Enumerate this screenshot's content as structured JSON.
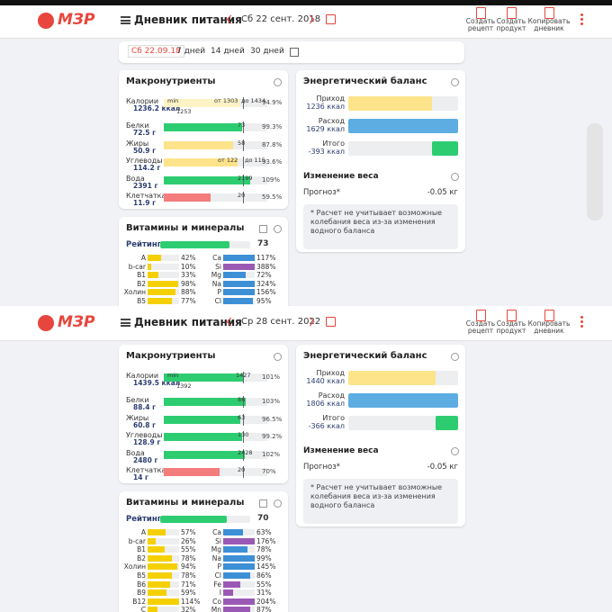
{
  "screens": [
    {
      "header": {
        "brand": "МЗР",
        "title": "Дневник питания",
        "date": "Сб 22 сент. 2018",
        "actions": [
          "Создать рецепт",
          "Создать продукт",
          "Копировать дневник"
        ]
      },
      "periods": [
        "Сб 22.09.18",
        "7 дней",
        "14 дней",
        "30 дней"
      ],
      "macros": {
        "title": "Макронутриенты",
        "rows": [
          {
            "name": "Калории",
            "amount": "1236.2 ккал",
            "pct": 94.9,
            "pct_label": "94.9%",
            "color": "#fdf3c4",
            "marks": [
              "min",
              "от 1303",
              "до 1434"
            ],
            "note": "1253"
          },
          {
            "name": "Белки",
            "amount": "72.5 г",
            "pct": 99.3,
            "pct_label": "99.3%",
            "color": "#2ecc71",
            "marks": [
              "73"
            ]
          },
          {
            "name": "Жиры",
            "amount": "50.9 г",
            "pct": 87.8,
            "pct_label": "87.8%",
            "color": "#fde38a",
            "marks": [
              "58"
            ]
          },
          {
            "name": "Углеводы",
            "amount": "114.2 г",
            "pct": 93.6,
            "pct_label": "93.6%",
            "color": "#fde38a",
            "marks": [
              "от 122",
              "до 115"
            ]
          },
          {
            "name": "Вода",
            "amount": "2391 г",
            "pct": 109,
            "pct_label": "109%",
            "color": "#2ecc71",
            "marks": [
              "2199"
            ]
          },
          {
            "name": "Клетчатка",
            "amount": "11.9 г",
            "pct": 59.5,
            "pct_label": "59.5%",
            "color": "#f47c7c",
            "marks": [
              "20"
            ]
          }
        ]
      },
      "energy": {
        "title": "Энергетический баланс",
        "rows": [
          {
            "name": "Приход",
            "value": 1236,
            "value_label": "1236 ккал",
            "color": "#fde38a"
          },
          {
            "name": "Расход",
            "value": 1629,
            "value_label": "1629 ккал",
            "color": "#5dade2"
          },
          {
            "name": "Итого",
            "value": -393,
            "value_label": "-393 ккал",
            "color": "#2ecc71"
          }
        ],
        "weight_title": "Изменение веса",
        "forecast": "Прогноз*",
        "forecast_value": "-0.05 кг",
        "note": "* Расчет не учитывает возможные колебания веса из-за изменения водного баланса"
      },
      "vitamins": {
        "title": "Витамины и минералы",
        "rating_label": "Рейтинг",
        "rating": 73,
        "left": [
          {
            "name": "A",
            "value": 42,
            "value_label": "42%",
            "color": "#f5d000"
          },
          {
            "name": "b-car",
            "value": 10,
            "value_label": "10%",
            "color": "#f5d000"
          },
          {
            "name": "B1",
            "value": 33,
            "value_label": "33%",
            "color": "#f5d000"
          },
          {
            "name": "B2",
            "value": 98,
            "value_label": "98%",
            "color": "#f5d000"
          },
          {
            "name": "Холин",
            "value": 88,
            "value_label": "88%",
            "color": "#f5d000"
          },
          {
            "name": "B5",
            "value": 77,
            "value_label": "77%",
            "color": "#f5d000"
          }
        ],
        "right": [
          {
            "name": "Ca",
            "value": 117,
            "value_label": "117%",
            "color": "#3d8fd6"
          },
          {
            "name": "Si",
            "value": 388,
            "value_label": "388%",
            "color": "#9b59b6"
          },
          {
            "name": "Mg",
            "value": 72,
            "value_label": "72%",
            "color": "#3d8fd6"
          },
          {
            "name": "Na",
            "value": 324,
            "value_label": "324%",
            "color": "#3d8fd6"
          },
          {
            "name": "P",
            "value": 156,
            "value_label": "156%",
            "color": "#3d8fd6"
          },
          {
            "name": "Cl",
            "value": 95,
            "value_label": "95%",
            "color": "#3d8fd6"
          }
        ]
      }
    },
    {
      "header": {
        "brand": "МЗР",
        "title": "Дневник питания",
        "date": "Ср 28 сент. 2022",
        "actions": [
          "Создать рецепт",
          "Создать продукт",
          "Копировать дневник"
        ]
      },
      "macros": {
        "title": "Макронутриенты",
        "rows": [
          {
            "name": "Калории",
            "amount": "1439.5 ккал",
            "pct": 101,
            "pct_label": "101%",
            "color": "#2ecc71",
            "marks": [
              "min",
              "1427"
            ],
            "note": "1392"
          },
          {
            "name": "Белки",
            "amount": "88.4 г",
            "pct": 103,
            "pct_label": "103%",
            "color": "#2ecc71",
            "marks": [
              "86"
            ]
          },
          {
            "name": "Жиры",
            "amount": "60.8 г",
            "pct": 96.5,
            "pct_label": "96.5%",
            "color": "#2ecc71",
            "marks": [
              "63"
            ]
          },
          {
            "name": "Углеводы",
            "amount": "128.9 г",
            "pct": 99.2,
            "pct_label": "99.2%",
            "color": "#2ecc71",
            "marks": [
              "130"
            ]
          },
          {
            "name": "Вода",
            "amount": "2480 г",
            "pct": 102,
            "pct_label": "102%",
            "color": "#2ecc71",
            "marks": [
              "2428"
            ]
          },
          {
            "name": "Клетчатка",
            "amount": "14 г",
            "pct": 70,
            "pct_label": "70%",
            "color": "#f47c7c",
            "marks": [
              "20"
            ]
          }
        ]
      },
      "energy": {
        "title": "Энергетический баланс",
        "rows": [
          {
            "name": "Приход",
            "value": 1440,
            "value_label": "1440 ккал",
            "color": "#fde38a"
          },
          {
            "name": "Расход",
            "value": 1806,
            "value_label": "1806 ккал",
            "color": "#5dade2"
          },
          {
            "name": "Итого",
            "value": -366,
            "value_label": "-366 ккал",
            "color": "#2ecc71"
          }
        ],
        "weight_title": "Изменение веса",
        "forecast": "Прогноз*",
        "forecast_value": "-0.05 кг",
        "note": "* Расчет не учитывает возможные колебания веса из-за изменения водного баланса"
      },
      "vitamins": {
        "title": "Витамины и минералы",
        "rating_label": "Рейтинг",
        "rating": 70,
        "left": [
          {
            "name": "A",
            "value": 57,
            "value_label": "57%",
            "color": "#f5d000"
          },
          {
            "name": "b-car",
            "value": 26,
            "value_label": "26%",
            "color": "#f5d000"
          },
          {
            "name": "B1",
            "value": 55,
            "value_label": "55%",
            "color": "#f5d000"
          },
          {
            "name": "B2",
            "value": 78,
            "value_label": "78%",
            "color": "#f5d000"
          },
          {
            "name": "Холин",
            "value": 94,
            "value_label": "94%",
            "color": "#f5d000"
          },
          {
            "name": "B5",
            "value": 78,
            "value_label": "78%",
            "color": "#f5d000"
          },
          {
            "name": "B6",
            "value": 71,
            "value_label": "71%",
            "color": "#f5d000"
          },
          {
            "name": "B9",
            "value": 59,
            "value_label": "59%",
            "color": "#f5d000"
          },
          {
            "name": "B12",
            "value": 114,
            "value_label": "114%",
            "color": "#f5d000"
          },
          {
            "name": "C",
            "value": 32,
            "value_label": "32%",
            "color": "#f5d000"
          }
        ],
        "right": [
          {
            "name": "Ca",
            "value": 63,
            "value_label": "63%",
            "color": "#3d8fd6"
          },
          {
            "name": "Si",
            "value": 176,
            "value_label": "176%",
            "color": "#9b59b6"
          },
          {
            "name": "Mg",
            "value": 78,
            "value_label": "78%",
            "color": "#3d8fd6"
          },
          {
            "name": "Na",
            "value": 99,
            "value_label": "99%",
            "color": "#3d8fd6"
          },
          {
            "name": "P",
            "value": 145,
            "value_label": "145%",
            "color": "#3d8fd6"
          },
          {
            "name": "Cl",
            "value": 86,
            "value_label": "86%",
            "color": "#3d8fd6"
          },
          {
            "name": "Fe",
            "value": 55,
            "value_label": "55%",
            "color": "#9b59b6"
          },
          {
            "name": "I",
            "value": 31,
            "value_label": "31%",
            "color": "#9b59b6"
          },
          {
            "name": "Co",
            "value": 204,
            "value_label": "204%",
            "color": "#9b59b6"
          },
          {
            "name": "Mn",
            "value": 87,
            "value_label": "87%",
            "color": "#9b59b6"
          }
        ]
      }
    }
  ]
}
